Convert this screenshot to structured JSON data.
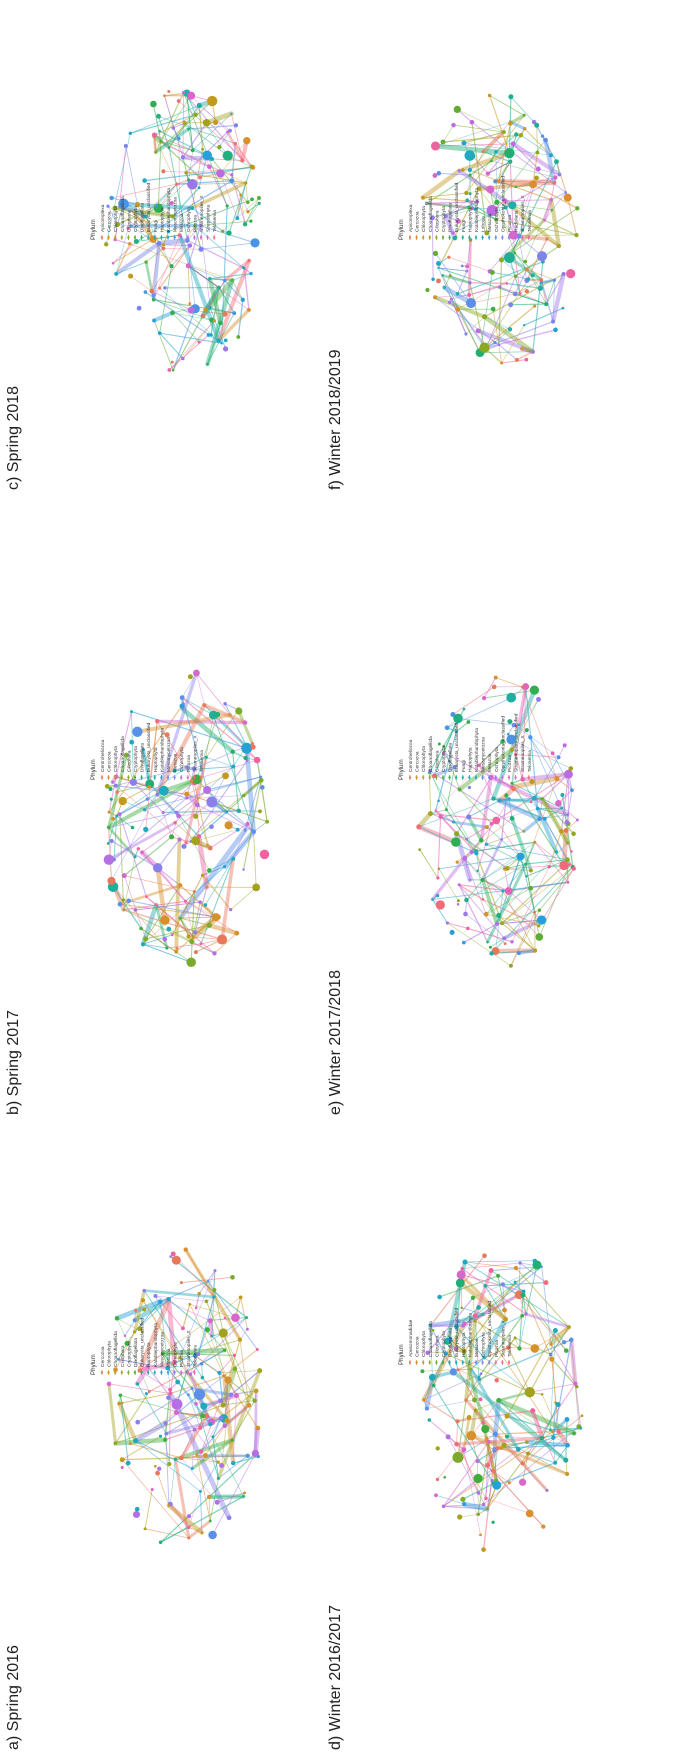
{
  "panels": [
    {
      "key": "a",
      "title": "a) Spring 2016",
      "legend_title": "Phylum",
      "legend": [
        {
          "name": "Cercozoa",
          "color": "#e8785a"
        },
        {
          "name": "Chlorophyta",
          "color": "#d8902c"
        },
        {
          "name": "Choanoflagellida",
          "color": "#c29a20"
        },
        {
          "name": "Ciliophora",
          "color": "#a3a21f"
        },
        {
          "name": "Cryptophyta",
          "color": "#7caa2a"
        },
        {
          "name": "Dinoflagellata",
          "color": "#3fae3f"
        },
        {
          "name": "Eukaryota_unclassified",
          "color": "#1faf74"
        },
        {
          "name": "Haptophyta",
          "color": "#1fae9c"
        },
        {
          "name": "Katablepharidophyta",
          "color": "#1fa9be"
        },
        {
          "name": "Mesomycetozoa",
          "color": "#25a0d8"
        },
        {
          "name": "Metazoa",
          "color": "#5a90e8"
        },
        {
          "name": "Ochrophyta",
          "color": "#8a80ec"
        },
        {
          "name": "Picozoa",
          "color": "#b46fe4"
        },
        {
          "name": "Stramenopiles_X",
          "color": "#d866cc"
        },
        {
          "name": "Telonemia",
          "color": "#f062a0"
        }
      ]
    },
    {
      "key": "b",
      "title": "b) Spring 2017",
      "legend_title": "Phylum",
      "legend": [
        {
          "name": "Centroheliozoa",
          "color": "#e8785a"
        },
        {
          "name": "Cercozoa",
          "color": "#d8902c"
        },
        {
          "name": "Chlorophyta",
          "color": "#c29a20"
        },
        {
          "name": "Choanoflagellida",
          "color": "#a3a21f"
        },
        {
          "name": "Ciliophora",
          "color": "#7caa2a"
        },
        {
          "name": "Cryptophyta",
          "color": "#3fae3f"
        },
        {
          "name": "Dinoflagellata",
          "color": "#1faf74"
        },
        {
          "name": "Eukaryota_unclassified",
          "color": "#1fae9c"
        },
        {
          "name": "Haptophyta",
          "color": "#1fa9be"
        },
        {
          "name": "Katablepharidophyta",
          "color": "#25a0d8"
        },
        {
          "name": "Mesomycetozoa",
          "color": "#5a90e8"
        },
        {
          "name": "Metazoa",
          "color": "#8a80ec"
        },
        {
          "name": "Ochrophyta",
          "color": "#b46fe4"
        },
        {
          "name": "Picozoa",
          "color": "#d866cc"
        },
        {
          "name": "Stramenopiles_X",
          "color": "#f062a0"
        },
        {
          "name": "Telonemia",
          "color": "#f26b7a"
        }
      ]
    },
    {
      "key": "c",
      "title": "c) Spring 2018",
      "legend_title": "Phylum",
      "legend": [
        {
          "name": "Apicomplexa",
          "color": "#e8785a"
        },
        {
          "name": "Cercozoa",
          "color": "#d8902c"
        },
        {
          "name": "Chlorophyta",
          "color": "#c29a20"
        },
        {
          "name": "Choanoflagellida",
          "color": "#a3a21f"
        },
        {
          "name": "Ciliophora",
          "color": "#8aa824"
        },
        {
          "name": "Cryptophyta",
          "color": "#5dad33"
        },
        {
          "name": "Dinoflagellata",
          "color": "#2fae52"
        },
        {
          "name": "Eukaryota_unclassified",
          "color": "#1faf80"
        },
        {
          "name": "Fungi",
          "color": "#1faea4"
        },
        {
          "name": "Haptophyta",
          "color": "#1fa9c2"
        },
        {
          "name": "Katablepharidophyta",
          "color": "#25a0d8"
        },
        {
          "name": "Mesomycetozoa",
          "color": "#4a94e6"
        },
        {
          "name": "Metazoa",
          "color": "#7486ec"
        },
        {
          "name": "Ochrophyta",
          "color": "#9a78ea"
        },
        {
          "name": "Picozoa",
          "color": "#bc6ce0"
        },
        {
          "name": "Stramenopiles_X",
          "color": "#d866cc"
        },
        {
          "name": "Streptophyta",
          "color": "#ea62ac"
        },
        {
          "name": "Telonemia",
          "color": "#f26b7a"
        }
      ]
    },
    {
      "key": "d",
      "title": "d) Winter 2016/2017",
      "legend_title": "Phylum",
      "legend": [
        {
          "name": "Apusomonadidae",
          "color": "#e8785a"
        },
        {
          "name": "Cercozoa",
          "color": "#d8902c"
        },
        {
          "name": "Chlorophyta",
          "color": "#c29a20"
        },
        {
          "name": "Choanoflagellida",
          "color": "#a3a21f"
        },
        {
          "name": "Ciliophora",
          "color": "#7caa2a"
        },
        {
          "name": "Cryptophyta",
          "color": "#3fae3f"
        },
        {
          "name": "Dinoflagellata",
          "color": "#1faf74"
        },
        {
          "name": "Eukaryota_unclassified",
          "color": "#1fae9c"
        },
        {
          "name": "Haptophyta",
          "color": "#1fa9be"
        },
        {
          "name": "Katablepharidophyta",
          "color": "#25a0d8"
        },
        {
          "name": "Metazoa",
          "color": "#5a90e8"
        },
        {
          "name": "Ochrophyta",
          "color": "#8a80ec"
        },
        {
          "name": "Opisthokonta_unclassified",
          "color": "#b46fe4"
        },
        {
          "name": "Picozoa",
          "color": "#d866cc"
        },
        {
          "name": "Stramenopiles_X",
          "color": "#f062a0"
        },
        {
          "name": "Telonemia",
          "color": "#f26b7a"
        }
      ]
    },
    {
      "key": "e",
      "title": "e) Winter 2017/2018",
      "legend_title": "Phylum",
      "legend": [
        {
          "name": "Centroheliozoa",
          "color": "#e8785a"
        },
        {
          "name": "Cercozoa",
          "color": "#d8902c"
        },
        {
          "name": "Chlorophyta",
          "color": "#c29a20"
        },
        {
          "name": "Choanoflagellida",
          "color": "#a3a21f"
        },
        {
          "name": "Ciliophora",
          "color": "#8aa824"
        },
        {
          "name": "Cryptophyta",
          "color": "#5dad33"
        },
        {
          "name": "Dinoflagellata",
          "color": "#2fae52"
        },
        {
          "name": "Eukaryota_unclassified",
          "color": "#1faf80"
        },
        {
          "name": "Fungi",
          "color": "#1faea4"
        },
        {
          "name": "Haptophyta",
          "color": "#1fa9c2"
        },
        {
          "name": "Katablepharidophyta",
          "color": "#25a0d8"
        },
        {
          "name": "Mesomycetozoa",
          "color": "#4a94e6"
        },
        {
          "name": "Metazoa",
          "color": "#7486ec"
        },
        {
          "name": "Ochrophyta",
          "color": "#9a78ea"
        },
        {
          "name": "Opisthokonta_unclassified",
          "color": "#bc6ce0"
        },
        {
          "name": "Picozoa",
          "color": "#d866cc"
        },
        {
          "name": "Stramenopiles_unclassified",
          "color": "#e463b8"
        },
        {
          "name": "Stramenopiles_X",
          "color": "#ee62a0"
        },
        {
          "name": "Telonemia",
          "color": "#f26b7a"
        }
      ]
    },
    {
      "key": "f",
      "title": "f) Winter 2018/2019",
      "legend_title": "Phylum",
      "legend": [
        {
          "name": "Apicomplexa",
          "color": "#e8785a"
        },
        {
          "name": "Cercozoa",
          "color": "#dc8c30"
        },
        {
          "name": "Chlorophyta",
          "color": "#c89820"
        },
        {
          "name": "Choanoflagellida",
          "color": "#aca01e"
        },
        {
          "name": "Ciliophora",
          "color": "#8aa824"
        },
        {
          "name": "Cryptophyta",
          "color": "#64ac30"
        },
        {
          "name": "Dinoflagellata",
          "color": "#3aae48"
        },
        {
          "name": "Eukaryota_unclassified",
          "color": "#1faf70"
        },
        {
          "name": "Fungi",
          "color": "#1faf90"
        },
        {
          "name": "Haptophyta",
          "color": "#1faeaa"
        },
        {
          "name": "Katablepharidophyta",
          "color": "#1faac0"
        },
        {
          "name": "Lobosa",
          "color": "#22a4d2"
        },
        {
          "name": "Metazoa",
          "color": "#3a9ae0"
        },
        {
          "name": "Ochrophyta",
          "color": "#5c8ee8"
        },
        {
          "name": "Opisthokonta_unclassified",
          "color": "#7e84ec"
        },
        {
          "name": "Picozoa",
          "color": "#9c78ea"
        },
        {
          "name": "Radiolaria",
          "color": "#bc6ce0"
        },
        {
          "name": "Stramenopiles_X",
          "color": "#d866cc"
        },
        {
          "name": "Telonemia",
          "color": "#ee62a0"
        }
      ]
    }
  ]
}
